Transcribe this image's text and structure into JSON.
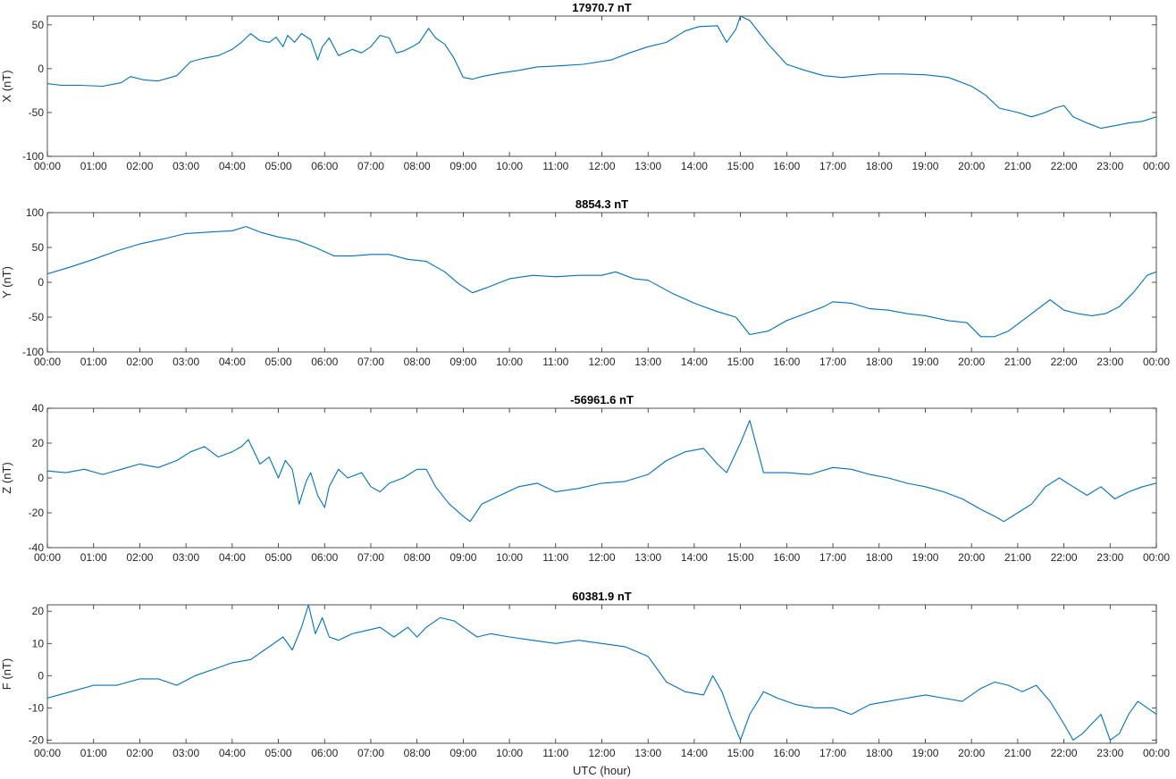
{
  "colors": {
    "series": "#0072bd",
    "axes": "#262626",
    "background": "#ffffff"
  },
  "x_tick_labels": [
    "00:00",
    "01:00",
    "02:00",
    "03:00",
    "04:00",
    "05:00",
    "06:00",
    "07:00",
    "08:00",
    "09:00",
    "10:00",
    "11:00",
    "12:00",
    "13:00",
    "14:00",
    "15:00",
    "16:00",
    "17:00",
    "18:00",
    "19:00",
    "20:00",
    "21:00",
    "22:00",
    "23:00",
    "00:00"
  ],
  "xlabel": "UTC (hour)",
  "chart_data": [
    {
      "type": "line",
      "title": "17970.7 nT",
      "ylabel": "X (nT)",
      "xlim": [
        0,
        24
      ],
      "ylim": [
        -100,
        60
      ],
      "yticks": [
        -100,
        -50,
        0,
        50
      ],
      "series": [
        {
          "x": [
            0,
            0.3,
            0.7,
            1.2,
            1.6,
            1.8,
            2.1,
            2.4,
            2.8,
            3.1,
            3.4,
            3.7,
            4.0,
            4.2,
            4.4,
            4.6,
            4.8,
            4.95,
            5.1,
            5.2,
            5.35,
            5.5,
            5.7,
            5.85,
            5.95,
            6.1,
            6.3,
            6.6,
            6.8,
            7.0,
            7.2,
            7.4,
            7.55,
            7.7,
            7.9,
            8.05,
            8.25,
            8.4,
            8.6,
            8.8,
            9.0,
            9.2,
            9.4,
            9.8,
            10.2,
            10.6,
            11.0,
            11.6,
            12.2,
            12.6,
            13.0,
            13.4,
            13.8,
            14.1,
            14.5,
            14.7,
            14.9,
            15.0,
            15.2,
            15.6,
            16.0,
            16.4,
            16.8,
            17.2,
            17.6,
            18.0,
            18.5,
            19.0,
            19.5,
            20.0,
            20.3,
            20.6,
            21.0,
            21.3,
            21.6,
            21.8,
            22.0,
            22.2,
            22.5,
            22.8,
            23.1,
            23.4,
            23.7,
            24.0
          ],
          "y": [
            -17,
            -19,
            -19,
            -20,
            -16,
            -9,
            -13,
            -14,
            -8,
            8,
            12,
            15,
            22,
            30,
            40,
            32,
            30,
            36,
            25,
            38,
            30,
            40,
            33,
            10,
            25,
            35,
            15,
            22,
            18,
            25,
            38,
            35,
            18,
            20,
            25,
            30,
            46,
            35,
            28,
            12,
            -10,
            -12,
            -9,
            -5,
            -2,
            2,
            3,
            5,
            10,
            18,
            25,
            30,
            43,
            48,
            49,
            30,
            45,
            60,
            55,
            28,
            5,
            -2,
            -8,
            -10,
            -8,
            -6,
            -6,
            -7,
            -10,
            -20,
            -30,
            -45,
            -50,
            -55,
            -50,
            -45,
            -42,
            -55,
            -62,
            -68,
            -65,
            -62,
            -60,
            -55
          ]
        }
      ]
    },
    {
      "type": "line",
      "title": "8854.3 nT",
      "ylabel": "Y (nT)",
      "xlim": [
        0,
        24
      ],
      "ylim": [
        -100,
        100
      ],
      "yticks": [
        -100,
        -50,
        0,
        50,
        100
      ],
      "series": [
        {
          "x": [
            0,
            0.5,
            1.0,
            1.5,
            2.0,
            2.5,
            3.0,
            3.5,
            4.0,
            4.3,
            4.6,
            5.0,
            5.4,
            5.8,
            6.2,
            6.6,
            7.0,
            7.4,
            7.8,
            8.2,
            8.6,
            8.9,
            9.2,
            9.5,
            10.0,
            10.5,
            11.0,
            11.5,
            12.0,
            12.3,
            12.7,
            13.0,
            13.5,
            14.0,
            14.5,
            14.9,
            15.2,
            15.6,
            16.0,
            16.4,
            16.8,
            17.0,
            17.4,
            17.8,
            18.2,
            18.6,
            19.0,
            19.5,
            19.9,
            20.2,
            20.5,
            20.8,
            21.1,
            21.4,
            21.7,
            22.0,
            22.3,
            22.6,
            22.9,
            23.2,
            23.5,
            23.8,
            24.0
          ],
          "y": [
            12,
            22,
            33,
            45,
            55,
            62,
            70,
            72,
            74,
            80,
            72,
            65,
            60,
            50,
            38,
            38,
            40,
            40,
            33,
            30,
            15,
            -2,
            -15,
            -8,
            5,
            10,
            8,
            10,
            10,
            15,
            5,
            3,
            -15,
            -30,
            -42,
            -50,
            -75,
            -70,
            -55,
            -45,
            -35,
            -28,
            -30,
            -38,
            -40,
            -45,
            -48,
            -55,
            -58,
            -78,
            -78,
            -70,
            -55,
            -40,
            -25,
            -40,
            -45,
            -48,
            -45,
            -35,
            -15,
            10,
            15
          ]
        }
      ]
    },
    {
      "type": "line",
      "title": "-56961.6 nT",
      "ylabel": "Z (nT)",
      "xlim": [
        0,
        24
      ],
      "ylim": [
        -40,
        40
      ],
      "yticks": [
        -40,
        -20,
        0,
        20,
        40
      ],
      "series": [
        {
          "x": [
            0,
            0.4,
            0.8,
            1.2,
            1.6,
            2.0,
            2.4,
            2.8,
            3.1,
            3.4,
            3.7,
            4.0,
            4.2,
            4.35,
            4.6,
            4.8,
            5.0,
            5.15,
            5.3,
            5.45,
            5.6,
            5.7,
            5.85,
            6.0,
            6.1,
            6.3,
            6.5,
            6.8,
            7.0,
            7.2,
            7.4,
            7.7,
            8.0,
            8.2,
            8.4,
            8.7,
            9.0,
            9.15,
            9.4,
            9.8,
            10.2,
            10.6,
            11.0,
            11.5,
            12.0,
            12.5,
            13.0,
            13.4,
            13.8,
            14.2,
            14.5,
            14.7,
            15.0,
            15.2,
            15.5,
            16.0,
            16.5,
            17.0,
            17.4,
            17.8,
            18.2,
            18.6,
            19.0,
            19.4,
            19.8,
            20.2,
            20.5,
            20.7,
            21.0,
            21.3,
            21.6,
            21.9,
            22.2,
            22.5,
            22.8,
            23.1,
            23.4,
            23.7,
            24.0
          ],
          "y": [
            4,
            3,
            5,
            2,
            5,
            8,
            6,
            10,
            15,
            18,
            12,
            15,
            18,
            22,
            8,
            12,
            0,
            10,
            5,
            -15,
            -2,
            3,
            -10,
            -17,
            -5,
            5,
            0,
            3,
            -5,
            -8,
            -3,
            0,
            5,
            5,
            -5,
            -15,
            -22,
            -25,
            -15,
            -10,
            -5,
            -3,
            -8,
            -6,
            -3,
            -2,
            2,
            10,
            15,
            17,
            8,
            3,
            20,
            33,
            3,
            3,
            2,
            6,
            5,
            2,
            0,
            -3,
            -5,
            -8,
            -12,
            -18,
            -22,
            -25,
            -20,
            -15,
            -5,
            0,
            -5,
            -10,
            -5,
            -12,
            -8,
            -5,
            -3
          ]
        }
      ]
    },
    {
      "type": "line",
      "title": "60381.9 nT",
      "ylabel": "F (nT)",
      "xlim": [
        0,
        24
      ],
      "ylim": [
        -21,
        22
      ],
      "yticks": [
        -20,
        -10,
        0,
        10,
        20
      ],
      "series": [
        {
          "x": [
            0,
            0.5,
            1.0,
            1.5,
            2.0,
            2.4,
            2.8,
            3.2,
            3.6,
            4.0,
            4.4,
            4.7,
            4.9,
            5.1,
            5.3,
            5.5,
            5.65,
            5.8,
            5.95,
            6.1,
            6.3,
            6.6,
            6.9,
            7.2,
            7.5,
            7.8,
            8.0,
            8.2,
            8.5,
            8.8,
            9.0,
            9.3,
            9.6,
            10.0,
            10.5,
            11.0,
            11.5,
            12.0,
            12.5,
            13.0,
            13.4,
            13.8,
            14.2,
            14.4,
            14.6,
            14.8,
            15.0,
            15.2,
            15.5,
            15.8,
            16.2,
            16.6,
            17.0,
            17.4,
            17.8,
            18.2,
            18.6,
            19.0,
            19.4,
            19.8,
            20.2,
            20.5,
            20.8,
            21.1,
            21.4,
            21.7,
            22.0,
            22.2,
            22.4,
            22.6,
            22.8,
            23.0,
            23.2,
            23.4,
            23.6,
            23.8,
            24.0
          ],
          "y": [
            -7,
            -5,
            -3,
            -3,
            -1,
            -1,
            -3,
            0,
            2,
            4,
            5,
            8,
            10,
            12,
            8,
            15,
            22,
            13,
            18,
            12,
            11,
            13,
            14,
            15,
            12,
            15,
            12,
            15,
            18,
            17,
            15,
            12,
            13,
            12,
            11,
            10,
            11,
            10,
            9,
            6,
            -2,
            -5,
            -6,
            0,
            -5,
            -13,
            -20,
            -12,
            -5,
            -7,
            -9,
            -10,
            -10,
            -12,
            -9,
            -8,
            -7,
            -6,
            -7,
            -8,
            -4,
            -2,
            -3,
            -5,
            -3,
            -8,
            -15,
            -20,
            -18,
            -15,
            -12,
            -20,
            -18,
            -12,
            -8,
            -10,
            -12
          ]
        }
      ]
    }
  ]
}
